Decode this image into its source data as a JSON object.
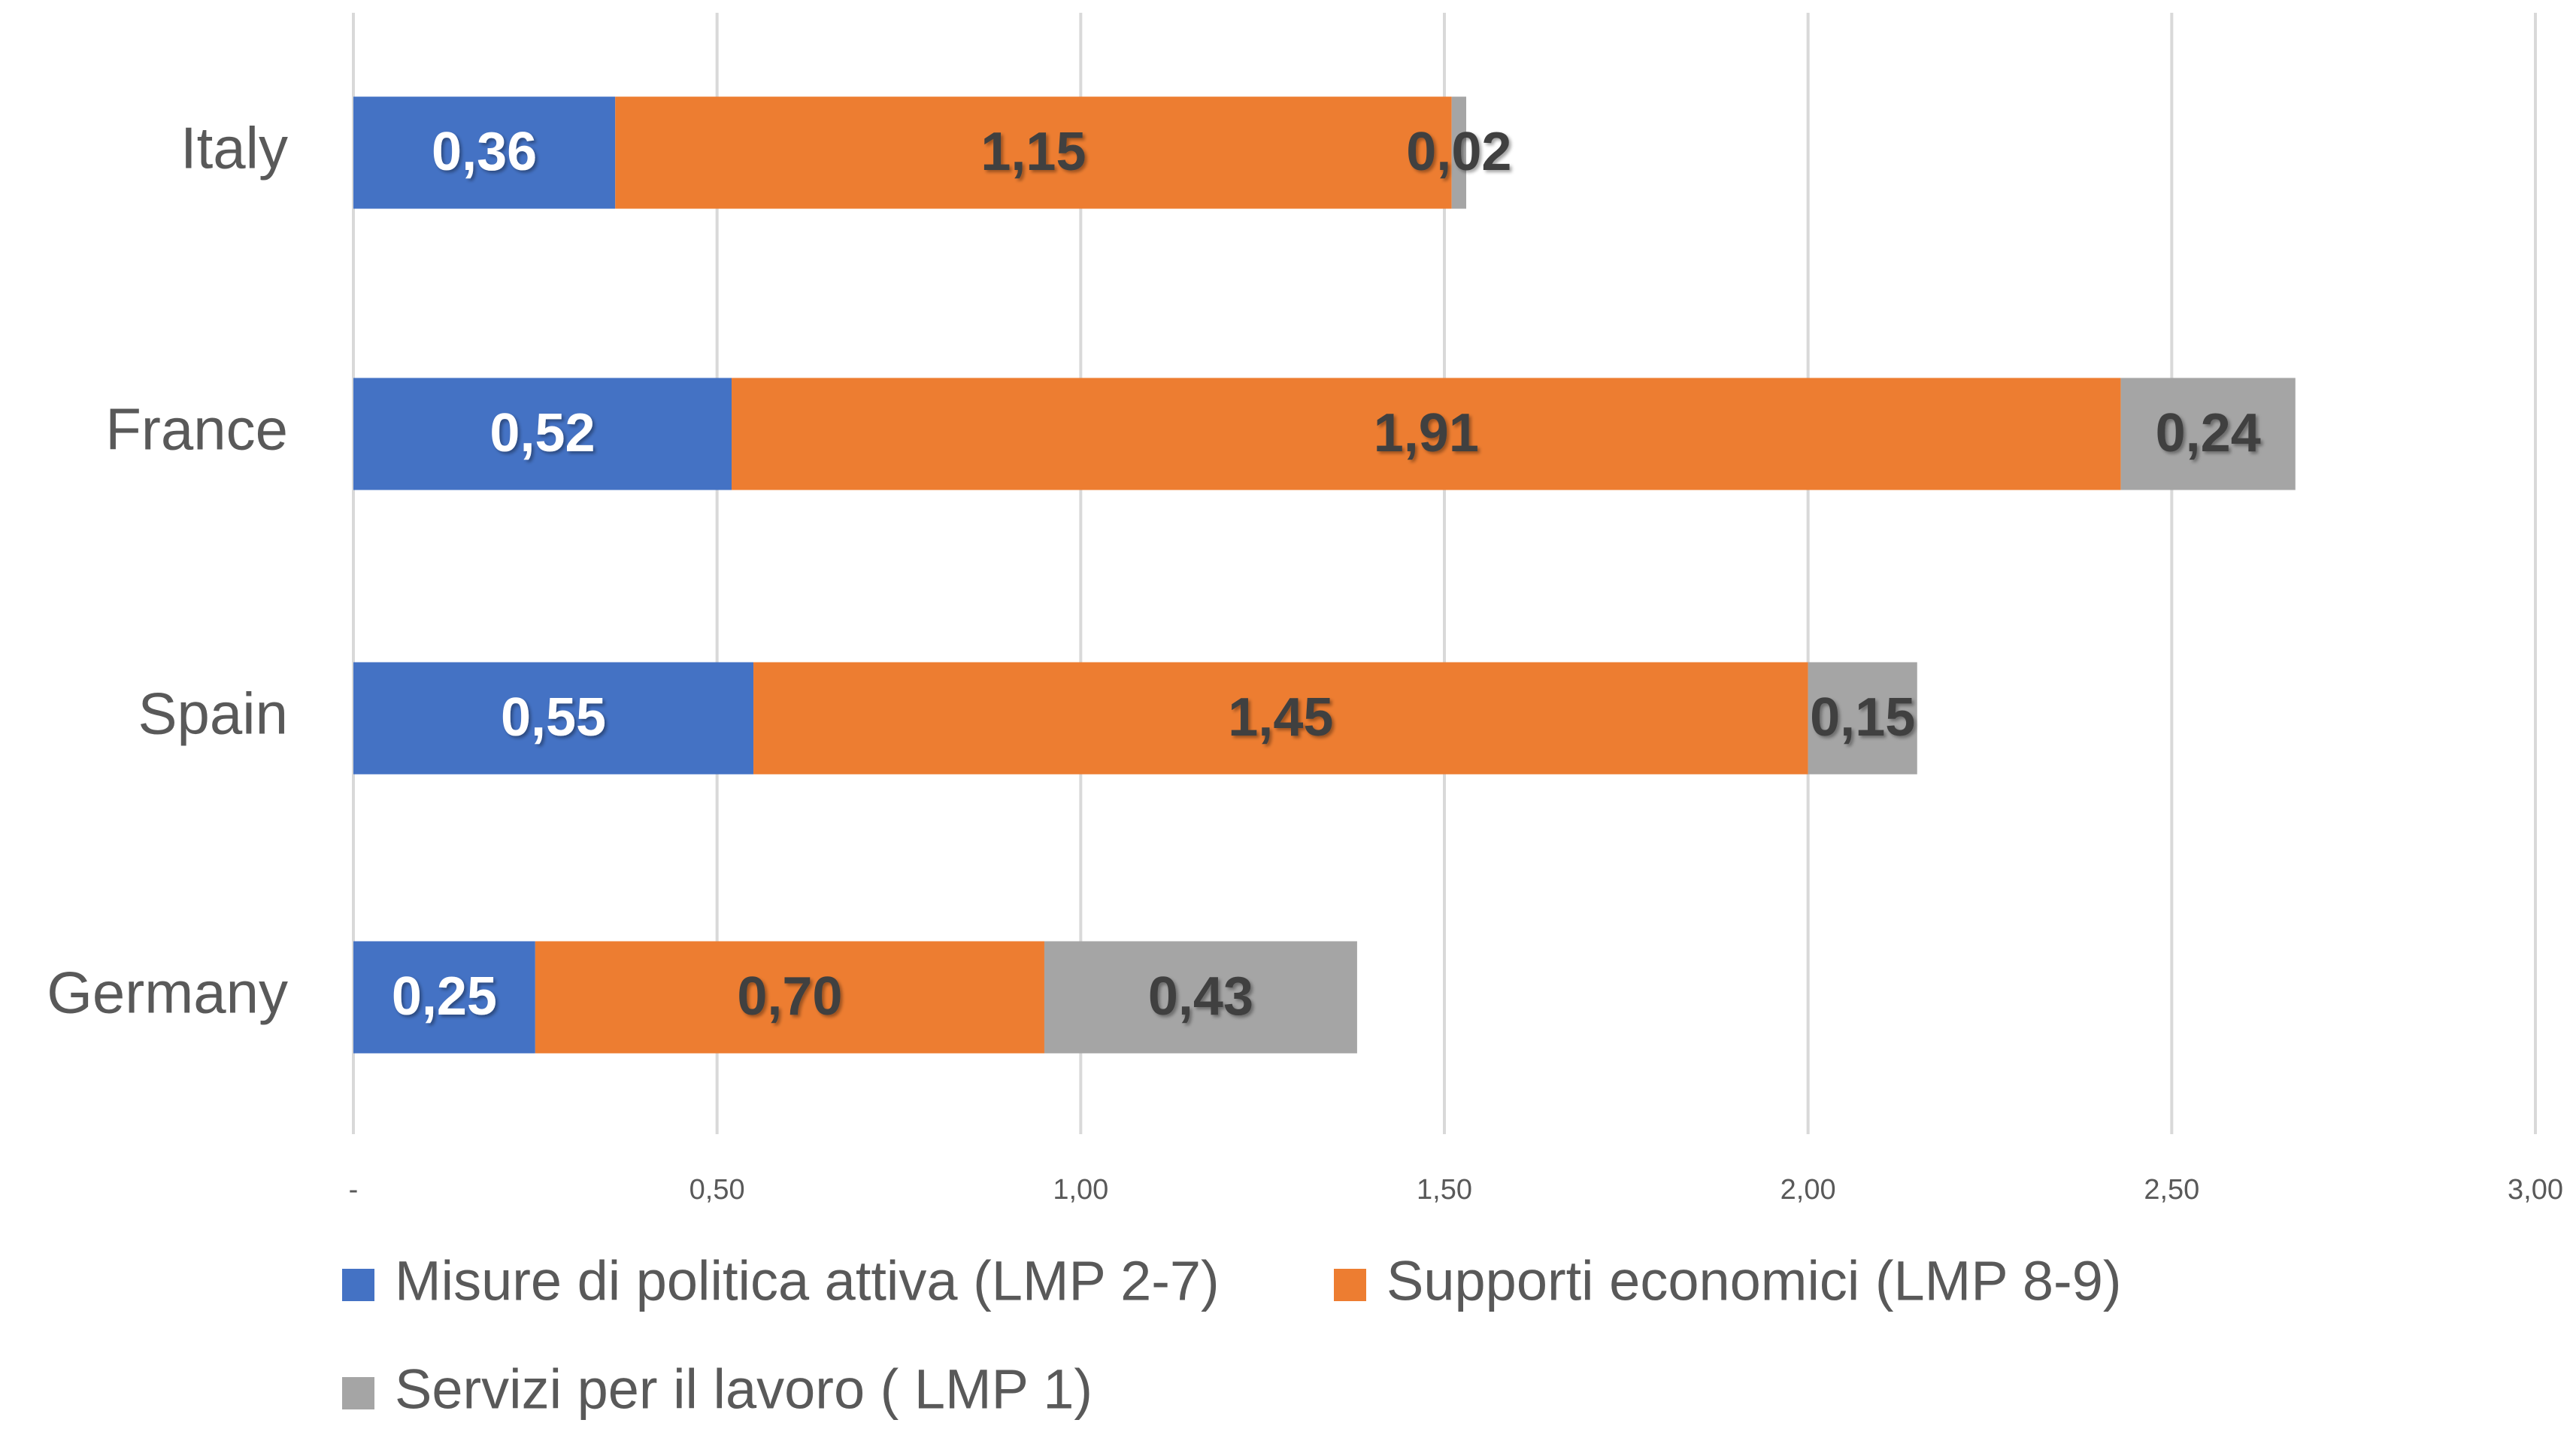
{
  "chart_data": {
    "type": "bar",
    "orientation": "horizontal",
    "stacked": true,
    "categories": [
      "Italy",
      "France",
      "Spain",
      "Germany"
    ],
    "series": [
      {
        "name": "Misure di politica attiva (LMP 2-7)",
        "color": "#4472c4",
        "values": [
          0.36,
          0.52,
          0.55,
          0.25
        ],
        "value_labels": [
          "0,36",
          "0,52",
          "0,55",
          "0,25"
        ]
      },
      {
        "name": "Supporti economici (LMP 8-9)",
        "color": "#ed7d31",
        "values": [
          1.15,
          1.91,
          1.45,
          0.7
        ],
        "value_labels": [
          "1,15",
          "1,91",
          "1,45",
          "0,70"
        ]
      },
      {
        "name": "Servizi per il lavoro ( LMP 1)",
        "color": "#a5a5a5",
        "values": [
          0.02,
          0.24,
          0.15,
          0.43
        ],
        "value_labels": [
          "0,02",
          "0,24",
          "0,15",
          "0,43"
        ]
      }
    ],
    "xlim": [
      0,
      3
    ],
    "xticks": [
      {
        "value": 0,
        "label": "-"
      },
      {
        "value": 0.5,
        "label": "0,50"
      },
      {
        "value": 1,
        "label": "1,00"
      },
      {
        "value": 1.5,
        "label": "1,50"
      },
      {
        "value": 2,
        "label": "2,00"
      },
      {
        "value": 2.5,
        "label": "2,50"
      },
      {
        "value": 3,
        "label": "3,00"
      }
    ],
    "grid": true,
    "legend": "bottom"
  }
}
